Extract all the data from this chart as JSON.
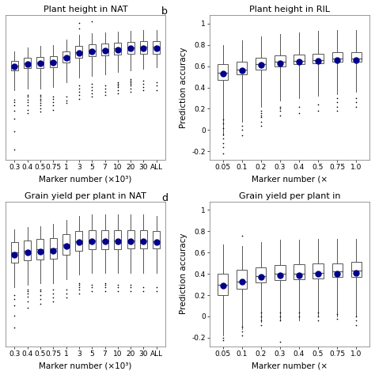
{
  "panel_a": {
    "title": "Plant height in NAT",
    "xlabel": "Marker number (×10³)",
    "categories": [
      "0.3",
      "0.4",
      "0.5",
      "0.75",
      "1",
      "3",
      "5",
      "7",
      "10",
      "20",
      "30",
      "ALL"
    ],
    "boxes": [
      {
        "q1": 0.44,
        "median": 0.5,
        "q3": 0.56,
        "mean": 0.49,
        "whislo": 0.2,
        "whishi": 0.68,
        "fliers_lo": [
          -0.52,
          -0.3,
          -0.15,
          -0.05,
          0.02,
          0.06,
          0.09
        ],
        "fliers_hi": []
      },
      {
        "q1": 0.47,
        "median": 0.53,
        "q3": 0.6,
        "mean": 0.52,
        "whislo": 0.22,
        "whishi": 0.72,
        "fliers_lo": [
          -0.08,
          -0.04,
          0.02,
          0.06,
          0.09,
          0.12,
          0.14
        ],
        "fliers_hi": []
      },
      {
        "q1": 0.47,
        "median": 0.54,
        "q3": 0.61,
        "mean": 0.53,
        "whislo": 0.22,
        "whishi": 0.74,
        "fliers_lo": [
          -0.06,
          -0.02,
          0.02,
          0.05,
          0.08,
          0.1,
          0.12,
          0.14
        ],
        "fliers_hi": []
      },
      {
        "q1": 0.48,
        "median": 0.55,
        "q3": 0.62,
        "mean": 0.54,
        "whislo": 0.24,
        "whishi": 0.75,
        "fliers_lo": [
          -0.04,
          0.02,
          0.06,
          0.1,
          0.12
        ],
        "fliers_hi": []
      },
      {
        "q1": 0.54,
        "median": 0.61,
        "q3": 0.68,
        "mean": 0.6,
        "whislo": 0.3,
        "whishi": 0.82,
        "fliers_lo": [
          0.05,
          0.08,
          0.12
        ],
        "fliers_hi": []
      },
      {
        "q1": 0.6,
        "median": 0.67,
        "q3": 0.74,
        "mean": 0.66,
        "whislo": 0.36,
        "whishi": 0.88,
        "fliers_lo": [
          0.1,
          0.14,
          0.18,
          0.22,
          0.26
        ],
        "fliers_hi": [
          0.96,
          1.02
        ]
      },
      {
        "q1": 0.62,
        "median": 0.69,
        "q3": 0.76,
        "mean": 0.68,
        "whislo": 0.38,
        "whishi": 0.9,
        "fliers_lo": [
          0.12,
          0.16,
          0.2,
          0.24,
          0.28
        ],
        "fliers_hi": [
          1.04
        ]
      },
      {
        "q1": 0.63,
        "median": 0.7,
        "q3": 0.77,
        "mean": 0.69,
        "whislo": 0.4,
        "whishi": 0.91,
        "fliers_lo": [
          0.14,
          0.18,
          0.22,
          0.26
        ],
        "fliers_hi": []
      },
      {
        "q1": 0.64,
        "median": 0.71,
        "q3": 0.78,
        "mean": 0.7,
        "whislo": 0.42,
        "whishi": 0.92,
        "fliers_lo": [
          0.16,
          0.2,
          0.24,
          0.26,
          0.28,
          0.3
        ],
        "fliers_hi": []
      },
      {
        "q1": 0.65,
        "median": 0.72,
        "q3": 0.79,
        "mean": 0.71,
        "whislo": 0.44,
        "whishi": 0.93,
        "fliers_lo": [
          0.18,
          0.22,
          0.26,
          0.28,
          0.3,
          0.32,
          0.34
        ],
        "fliers_hi": []
      },
      {
        "q1": 0.65,
        "median": 0.73,
        "q3": 0.8,
        "mean": 0.71,
        "whislo": 0.46,
        "whishi": 0.94,
        "fliers_lo": [
          0.2,
          0.24,
          0.28,
          0.32
        ],
        "fliers_hi": []
      },
      {
        "q1": 0.65,
        "median": 0.73,
        "q3": 0.8,
        "mean": 0.71,
        "whislo": 0.48,
        "whishi": 0.94,
        "fliers_lo": [
          0.2,
          0.26,
          0.3
        ],
        "fliers_hi": []
      }
    ],
    "ylim": [
      -0.65,
      1.12
    ],
    "show_yticks": false
  },
  "panel_b": {
    "title": "Plant height in RIL",
    "label": "b",
    "xlabel": "Marker number (×",
    "categories": [
      "0.05",
      "0.1",
      "0.2",
      "0.3",
      "0.4",
      "0.5",
      "0.75",
      "1.0"
    ],
    "boxes": [
      {
        "q1": 0.47,
        "median": 0.54,
        "q3": 0.62,
        "mean": 0.53,
        "whislo": -0.05,
        "whishi": 0.8,
        "fliers_lo": [
          -0.22,
          -0.16,
          -0.12,
          -0.08,
          -0.04,
          0.02,
          0.06,
          0.1
        ],
        "fliers_hi": []
      },
      {
        "q1": 0.52,
        "median": 0.57,
        "q3": 0.64,
        "mean": 0.56,
        "whislo": 0.08,
        "whishi": 0.84,
        "fliers_lo": [
          -0.05,
          0.0,
          0.04
        ],
        "fliers_hi": []
      },
      {
        "q1": 0.57,
        "median": 0.62,
        "q3": 0.68,
        "mean": 0.61,
        "whislo": 0.22,
        "whishi": 0.88,
        "fliers_lo": [
          0.04,
          0.08,
          0.12,
          0.14,
          0.16,
          0.18
        ],
        "fliers_hi": []
      },
      {
        "q1": 0.6,
        "median": 0.64,
        "q3": 0.7,
        "mean": 0.63,
        "whislo": 0.28,
        "whishi": 0.9,
        "fliers_lo": [
          0.14,
          0.18,
          0.2,
          0.22
        ],
        "fliers_hi": []
      },
      {
        "q1": 0.62,
        "median": 0.65,
        "q3": 0.71,
        "mean": 0.64,
        "whislo": 0.3,
        "whishi": 0.92,
        "fliers_lo": [
          0.16,
          0.22
        ],
        "fliers_hi": []
      },
      {
        "q1": 0.63,
        "median": 0.66,
        "q3": 0.72,
        "mean": 0.65,
        "whislo": 0.32,
        "whishi": 0.93,
        "fliers_lo": [
          0.18,
          0.24
        ],
        "fliers_hi": []
      },
      {
        "q1": 0.64,
        "median": 0.67,
        "q3": 0.73,
        "mean": 0.66,
        "whislo": 0.34,
        "whishi": 0.94,
        "fliers_lo": [
          0.18,
          0.22,
          0.26,
          0.3
        ],
        "fliers_hi": []
      },
      {
        "q1": 0.64,
        "median": 0.67,
        "q3": 0.73,
        "mean": 0.66,
        "whislo": 0.36,
        "whishi": 0.94,
        "fliers_lo": [
          0.22,
          0.26,
          0.3
        ],
        "fliers_hi": []
      }
    ],
    "ylim": [
      -0.28,
      1.08
    ],
    "yticks": [
      -0.2,
      0.0,
      0.2,
      0.4,
      0.6,
      0.8,
      1.0
    ],
    "ylabel": "Prediction accuracy"
  },
  "panel_c": {
    "title": "Grain yield per plant in NAT",
    "xlabel": "Marker number (×10³)",
    "categories": [
      "0.3",
      "0.4",
      "0.5",
      "0.75",
      "1",
      "3",
      "5",
      "7",
      "10",
      "20",
      "30",
      "ALL"
    ],
    "boxes": [
      {
        "q1": 0.32,
        "median": 0.42,
        "q3": 0.52,
        "mean": 0.4,
        "whislo": 0.08,
        "whishi": 0.65,
        "fliers_lo": [
          -0.32,
          -0.2,
          -0.1,
          -0.04,
          0.0
        ],
        "fliers_hi": []
      },
      {
        "q1": 0.34,
        "median": 0.44,
        "q3": 0.54,
        "mean": 0.42,
        "whislo": 0.1,
        "whishi": 0.67,
        "fliers_lo": [
          -0.12,
          -0.06,
          -0.01,
          0.02,
          0.04,
          0.06
        ],
        "fliers_hi": []
      },
      {
        "q1": 0.35,
        "median": 0.45,
        "q3": 0.55,
        "mean": 0.43,
        "whislo": 0.12,
        "whishi": 0.68,
        "fliers_lo": [
          -0.08,
          -0.04,
          0.0,
          0.04,
          0.06
        ],
        "fliers_hi": []
      },
      {
        "q1": 0.36,
        "median": 0.46,
        "q3": 0.56,
        "mean": 0.44,
        "whislo": 0.12,
        "whishi": 0.7,
        "fliers_lo": [
          -0.06,
          -0.02,
          0.02,
          0.06
        ],
        "fliers_hi": []
      },
      {
        "q1": 0.4,
        "median": 0.5,
        "q3": 0.6,
        "mean": 0.48,
        "whislo": 0.16,
        "whishi": 0.74,
        "fliers_lo": [
          -0.02,
          0.02,
          0.06
        ],
        "fliers_hi": []
      },
      {
        "q1": 0.44,
        "median": 0.53,
        "q3": 0.63,
        "mean": 0.52,
        "whislo": 0.2,
        "whishi": 0.78,
        "fliers_lo": [
          0.02,
          0.06,
          0.08,
          0.1,
          0.12
        ],
        "fliers_hi": []
      },
      {
        "q1": 0.45,
        "median": 0.54,
        "q3": 0.64,
        "mean": 0.53,
        "whislo": 0.22,
        "whishi": 0.79,
        "fliers_lo": [
          0.04,
          0.08,
          0.1
        ],
        "fliers_hi": []
      },
      {
        "q1": 0.45,
        "median": 0.54,
        "q3": 0.64,
        "mean": 0.53,
        "whislo": 0.22,
        "whishi": 0.79,
        "fliers_lo": [
          0.04,
          0.08,
          0.1,
          0.12
        ],
        "fliers_hi": []
      },
      {
        "q1": 0.45,
        "median": 0.54,
        "q3": 0.64,
        "mean": 0.53,
        "whislo": 0.22,
        "whishi": 0.79,
        "fliers_lo": [
          0.04,
          0.08,
          0.1
        ],
        "fliers_hi": []
      },
      {
        "q1": 0.46,
        "median": 0.54,
        "q3": 0.64,
        "mean": 0.53,
        "whislo": 0.22,
        "whishi": 0.79,
        "fliers_lo": [
          0.04,
          0.08,
          0.1
        ],
        "fliers_hi": []
      },
      {
        "q1": 0.46,
        "median": 0.54,
        "q3": 0.64,
        "mean": 0.53,
        "whislo": 0.22,
        "whishi": 0.79,
        "fliers_lo": [
          0.04,
          0.08
        ],
        "fliers_hi": []
      },
      {
        "q1": 0.46,
        "median": 0.53,
        "q3": 0.63,
        "mean": 0.52,
        "whislo": 0.22,
        "whishi": 0.78,
        "fliers_lo": [
          0.04,
          0.08
        ],
        "fliers_hi": []
      }
    ],
    "ylim": [
      -0.5,
      0.92
    ],
    "show_yticks": false
  },
  "panel_d": {
    "title": "Grain yield per plant in",
    "label": "d",
    "xlabel": "Marker number (×",
    "categories": [
      "0.05",
      "0.1",
      "0.2",
      "0.3",
      "0.4",
      "0.5",
      "0.75",
      "1.0"
    ],
    "boxes": [
      {
        "q1": 0.2,
        "median": 0.3,
        "q3": 0.4,
        "mean": 0.29,
        "whislo": -0.18,
        "whishi": 0.68,
        "fliers_lo": [
          -0.22,
          -0.2
        ],
        "fliers_hi": []
      },
      {
        "q1": 0.26,
        "median": 0.33,
        "q3": 0.44,
        "mean": 0.33,
        "whislo": -0.12,
        "whishi": 0.66,
        "fliers_lo": [
          -0.18,
          -0.14,
          -0.1
        ],
        "fliers_hi": [
          0.76
        ]
      },
      {
        "q1": 0.32,
        "median": 0.38,
        "q3": 0.46,
        "mean": 0.37,
        "whislo": -0.05,
        "whishi": 0.7,
        "fliers_lo": [
          -0.08,
          -0.04,
          0.0,
          0.04
        ],
        "fliers_hi": []
      },
      {
        "q1": 0.34,
        "median": 0.4,
        "q3": 0.48,
        "mean": 0.39,
        "whislo": -0.04,
        "whishi": 0.72,
        "fliers_lo": [
          -0.24,
          -0.04,
          0.0,
          0.04
        ],
        "fliers_hi": []
      },
      {
        "q1": 0.35,
        "median": 0.4,
        "q3": 0.49,
        "mean": 0.39,
        "whislo": -0.04,
        "whishi": 0.72,
        "fliers_lo": [
          0.0,
          0.04
        ],
        "fliers_hi": []
      },
      {
        "q1": 0.36,
        "median": 0.41,
        "q3": 0.5,
        "mean": 0.4,
        "whislo": 0.0,
        "whishi": 0.73,
        "fliers_lo": [
          -0.04,
          0.0,
          0.04
        ],
        "fliers_hi": []
      },
      {
        "q1": 0.37,
        "median": 0.42,
        "q3": 0.5,
        "mean": 0.4,
        "whislo": 0.0,
        "whishi": 0.73,
        "fliers_lo": [
          -0.02,
          0.02
        ],
        "fliers_hi": []
      },
      {
        "q1": 0.37,
        "median": 0.43,
        "q3": 0.51,
        "mean": 0.41,
        "whislo": 0.0,
        "whishi": 0.73,
        "fliers_lo": [
          -0.08,
          -0.04,
          0.0
        ],
        "fliers_hi": []
      }
    ],
    "ylim": [
      -0.28,
      1.08
    ],
    "yticks": [
      -0.2,
      0.0,
      0.2,
      0.4,
      0.6,
      0.8,
      1.0
    ],
    "ylabel": "Prediction accuracy"
  },
  "box_color": "#ffffff",
  "box_edge_color": "#555555",
  "median_line_color": "#555555",
  "mean_marker_color": "#00008B",
  "mean_marker_size": 5,
  "flier_color": "#000000",
  "flier_size": 1.2,
  "whisker_color": "#555555",
  "cap_color": "#555555",
  "linewidth": 0.7,
  "background_color": "#ffffff"
}
